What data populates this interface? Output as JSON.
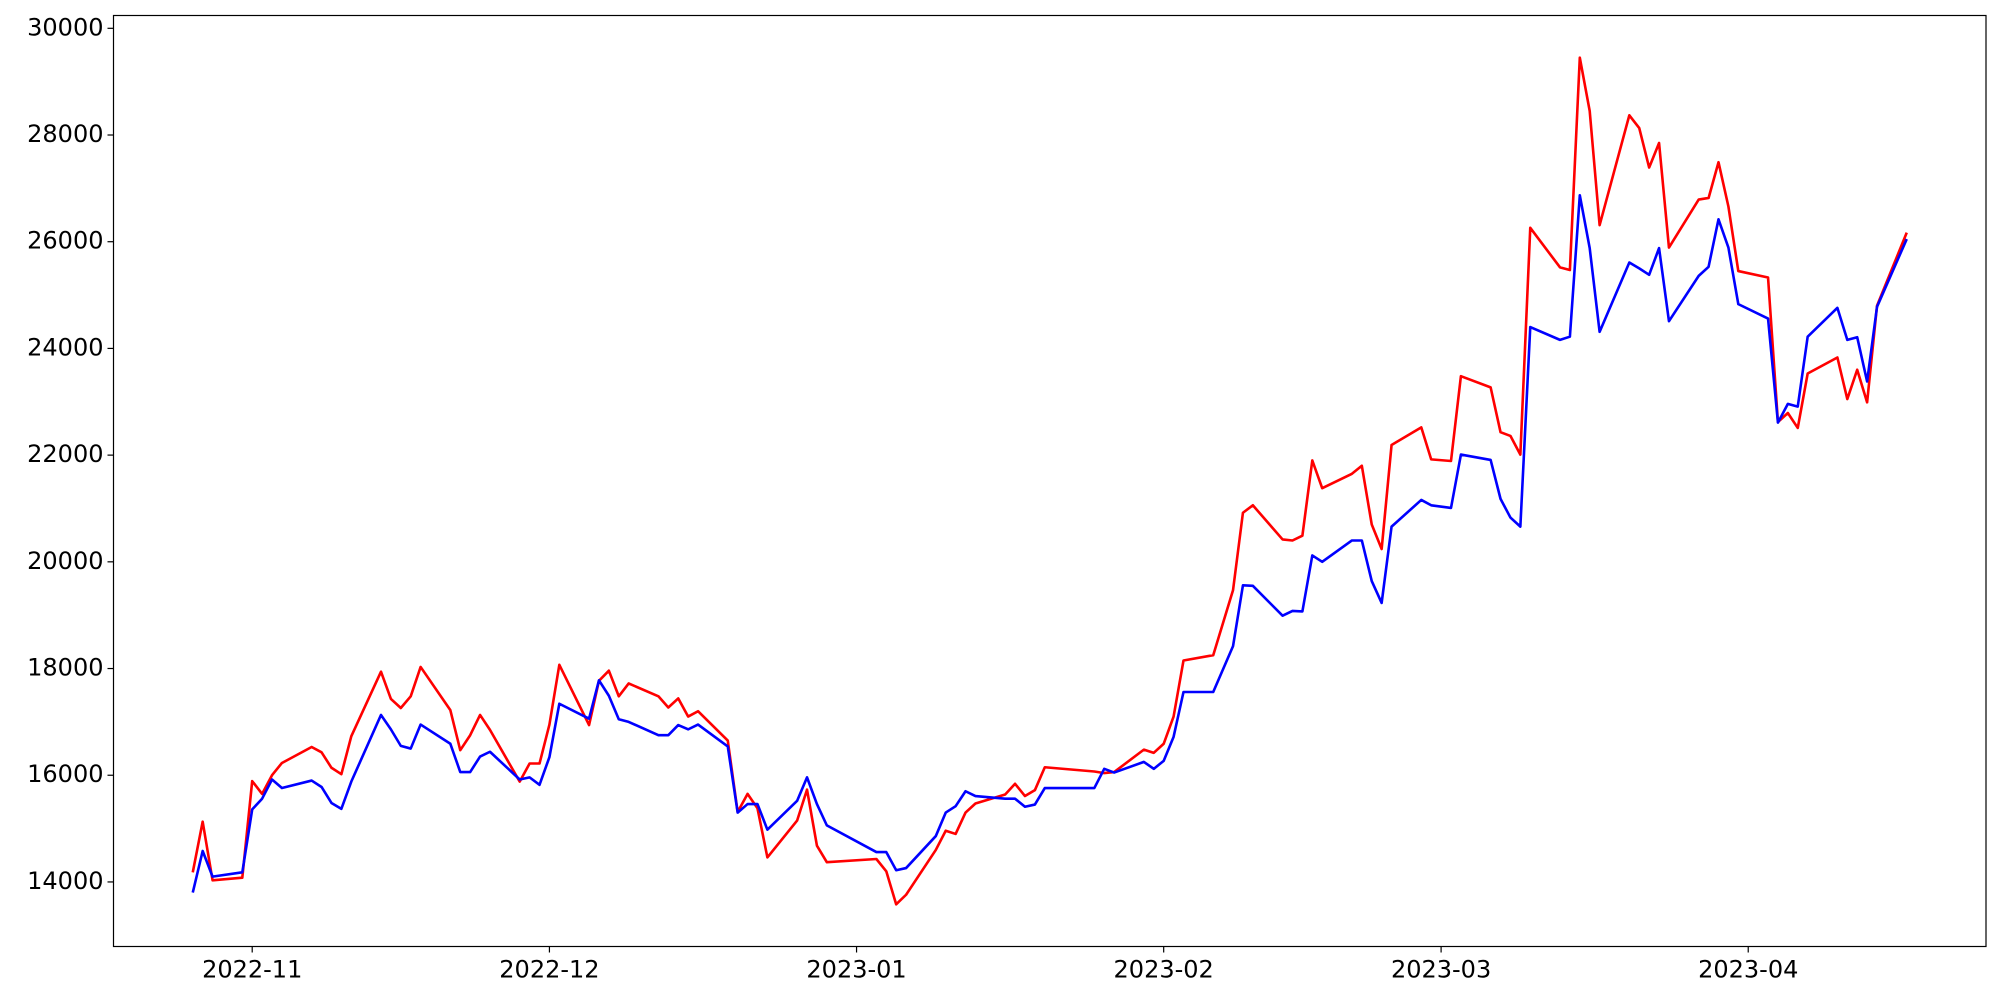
{
  "chart_data": {
    "type": "line",
    "x": [
      "2022-10-26",
      "2022-10-27",
      "2022-10-28",
      "2022-10-31",
      "2022-11-01",
      "2022-11-02",
      "2022-11-03",
      "2022-11-04",
      "2022-11-07",
      "2022-11-08",
      "2022-11-09",
      "2022-11-10",
      "2022-11-11",
      "2022-11-14",
      "2022-11-15",
      "2022-11-16",
      "2022-11-17",
      "2022-11-18",
      "2022-11-21",
      "2022-11-22",
      "2022-11-23",
      "2022-11-24",
      "2022-11-25",
      "2022-11-28",
      "2022-11-29",
      "2022-11-30",
      "2022-12-01",
      "2022-12-02",
      "2022-12-05",
      "2022-12-06",
      "2022-12-07",
      "2022-12-08",
      "2022-12-09",
      "2022-12-12",
      "2022-12-13",
      "2022-12-14",
      "2022-12-15",
      "2022-12-16",
      "2022-12-19",
      "2022-12-20",
      "2022-12-21",
      "2022-12-22",
      "2022-12-23",
      "2022-12-26",
      "2022-12-27",
      "2022-12-28",
      "2022-12-29",
      "2023-01-03",
      "2023-01-04",
      "2023-01-05",
      "2023-01-06",
      "2023-01-09",
      "2023-01-10",
      "2023-01-11",
      "2023-01-12",
      "2023-01-13",
      "2023-01-16",
      "2023-01-17",
      "2023-01-18",
      "2023-01-19",
      "2023-01-20",
      "2023-01-25",
      "2023-01-26",
      "2023-01-27",
      "2023-01-30",
      "2023-01-31",
      "2023-02-01",
      "2023-02-02",
      "2023-02-03",
      "2023-02-06",
      "2023-02-08",
      "2023-02-09",
      "2023-02-10",
      "2023-02-13",
      "2023-02-14",
      "2023-02-15",
      "2023-02-16",
      "2023-02-17",
      "2023-02-20",
      "2023-02-21",
      "2023-02-22",
      "2023-02-23",
      "2023-02-24",
      "2023-02-27",
      "2023-02-28",
      "2023-03-02",
      "2023-03-03",
      "2023-03-06",
      "2023-03-07",
      "2023-03-08",
      "2023-03-09",
      "2023-03-10",
      "2023-03-13",
      "2023-03-14",
      "2023-03-15",
      "2023-03-16",
      "2023-03-17",
      "2023-03-20",
      "2023-03-21",
      "2023-03-22",
      "2023-03-23",
      "2023-03-24",
      "2023-03-27",
      "2023-03-28",
      "2023-03-29",
      "2023-03-30",
      "2023-03-31",
      "2023-04-03",
      "2023-04-04",
      "2023-04-05",
      "2023-04-06",
      "2023-04-07",
      "2023-04-10",
      "2023-04-11",
      "2023-04-12",
      "2023-04-13",
      "2023-04-14",
      "2023-04-17"
    ],
    "series": [
      {
        "color": "#ff0000",
        "values": [
          14180,
          15130,
          14030,
          14080,
          15890,
          15650,
          16000,
          16230,
          16530,
          16430,
          16140,
          16020,
          16730,
          17940,
          17430,
          17260,
          17480,
          18030,
          17220,
          16470,
          16750,
          17130,
          16850,
          15880,
          16220,
          16220,
          16950,
          18070,
          16940,
          17770,
          17960,
          17480,
          17720,
          17480,
          17270,
          17440,
          17100,
          17200,
          16650,
          15310,
          15650,
          15380,
          14460,
          15150,
          15730,
          14680,
          14370,
          14430,
          14200,
          13580,
          13760,
          14600,
          14960,
          14900,
          15300,
          15470,
          15640,
          15840,
          15610,
          15720,
          16150,
          16070,
          16040,
          16060,
          16480,
          16420,
          16590,
          17100,
          18150,
          18250,
          19470,
          20920,
          21060,
          20420,
          20400,
          20490,
          21900,
          21380,
          21650,
          21800,
          20700,
          20240,
          22190,
          22520,
          21920,
          21890,
          23480,
          23270,
          22430,
          22360,
          22010,
          26260,
          25520,
          25470,
          29450,
          28450,
          26310,
          28370,
          28130,
          27390,
          27850,
          25890,
          26790,
          26820,
          27490,
          26660,
          25450,
          25330,
          22620,
          22790,
          22510,
          23530,
          23830,
          23050,
          23600,
          22990,
          24800,
          26170
        ]
      },
      {
        "color": "#0000ff",
        "values": [
          13800,
          14580,
          14100,
          14180,
          15360,
          15560,
          15920,
          15760,
          15900,
          15780,
          15480,
          15370,
          15880,
          17130,
          16860,
          16550,
          16500,
          16950,
          16590,
          16060,
          16060,
          16350,
          16440,
          15920,
          15960,
          15820,
          16340,
          17340,
          17060,
          17780,
          17490,
          17050,
          17000,
          16750,
          16750,
          16940,
          16860,
          16950,
          16540,
          15300,
          15460,
          15460,
          14980,
          15520,
          15960,
          15460,
          15060,
          14560,
          14560,
          14220,
          14260,
          14860,
          15300,
          15420,
          15700,
          15610,
          15560,
          15560,
          15410,
          15450,
          15760,
          15760,
          16120,
          16050,
          16250,
          16120,
          16270,
          16720,
          17560,
          17560,
          18420,
          19560,
          19550,
          18990,
          19080,
          19070,
          20120,
          20000,
          20400,
          20400,
          19640,
          19230,
          20660,
          21160,
          21060,
          21010,
          22010,
          21910,
          21180,
          20830,
          20660,
          24400,
          24160,
          24220,
          26870,
          25880,
          24310,
          25610,
          25500,
          25380,
          25880,
          24510,
          25360,
          25530,
          26420,
          25890,
          24830,
          24560,
          22610,
          22960,
          22910,
          24220,
          24760,
          24160,
          24210,
          23380,
          24780,
          26050
        ]
      }
    ],
    "xlim": [
      "2022-10-18",
      "2023-04-25"
    ],
    "xticks": [
      {
        "value": "2022-11-01",
        "label": "2022-11"
      },
      {
        "value": "2022-12-01",
        "label": "2022-12"
      },
      {
        "value": "2023-01-01",
        "label": "2023-01"
      },
      {
        "value": "2023-02-01",
        "label": "2023-02"
      },
      {
        "value": "2023-03-01",
        "label": "2023-03"
      },
      {
        "value": "2023-04-01",
        "label": "2023-04"
      }
    ],
    "ylim": [
      12790,
      30240
    ],
    "yticks": [
      14000,
      16000,
      18000,
      20000,
      22000,
      24000,
      26000,
      28000,
      30000
    ],
    "grid": false
  }
}
